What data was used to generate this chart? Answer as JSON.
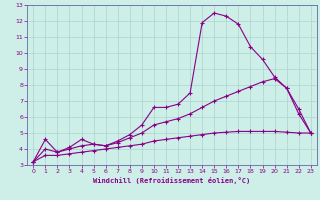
{
  "xlabel": "Windchill (Refroidissement éolien,°C)",
  "bg_color": "#ceeee8",
  "grid_color": "#aad4ce",
  "line_color": "#880088",
  "spine_color": "#6666aa",
  "xlim": [
    -0.5,
    23.5
  ],
  "ylim": [
    3,
    13
  ],
  "xticks": [
    0,
    1,
    2,
    3,
    4,
    5,
    6,
    7,
    8,
    9,
    10,
    11,
    12,
    13,
    14,
    15,
    16,
    17,
    18,
    19,
    20,
    21,
    22,
    23
  ],
  "yticks": [
    3,
    4,
    5,
    6,
    7,
    8,
    9,
    10,
    11,
    12,
    13
  ],
  "series1_x": [
    0,
    1,
    2,
    3,
    4,
    5,
    6,
    7,
    8,
    9,
    10,
    11,
    12,
    13,
    14,
    15,
    16,
    17,
    18,
    19,
    20,
    21,
    22,
    23
  ],
  "series1_y": [
    3.2,
    4.6,
    3.8,
    4.1,
    4.6,
    4.3,
    4.2,
    4.5,
    4.9,
    5.5,
    6.6,
    6.6,
    6.8,
    7.5,
    11.9,
    12.5,
    12.3,
    11.8,
    10.4,
    9.6,
    8.5,
    7.8,
    6.2,
    5.0
  ],
  "series2_x": [
    0,
    1,
    2,
    3,
    4,
    5,
    6,
    7,
    8,
    9,
    10,
    11,
    12,
    13,
    14,
    15,
    16,
    17,
    18,
    19,
    20,
    21,
    22,
    23
  ],
  "series2_y": [
    3.2,
    4.0,
    3.8,
    4.0,
    4.2,
    4.3,
    4.2,
    4.4,
    4.7,
    5.0,
    5.5,
    5.7,
    5.9,
    6.2,
    6.6,
    7.0,
    7.3,
    7.6,
    7.9,
    8.2,
    8.4,
    7.8,
    6.5,
    5.0
  ],
  "series3_x": [
    0,
    1,
    2,
    3,
    4,
    5,
    6,
    7,
    8,
    9,
    10,
    11,
    12,
    13,
    14,
    15,
    16,
    17,
    18,
    19,
    20,
    21,
    22,
    23
  ],
  "series3_y": [
    3.2,
    3.6,
    3.6,
    3.7,
    3.8,
    3.9,
    4.0,
    4.1,
    4.2,
    4.3,
    4.5,
    4.6,
    4.7,
    4.8,
    4.9,
    5.0,
    5.05,
    5.1,
    5.1,
    5.1,
    5.1,
    5.05,
    5.0,
    5.0
  ]
}
